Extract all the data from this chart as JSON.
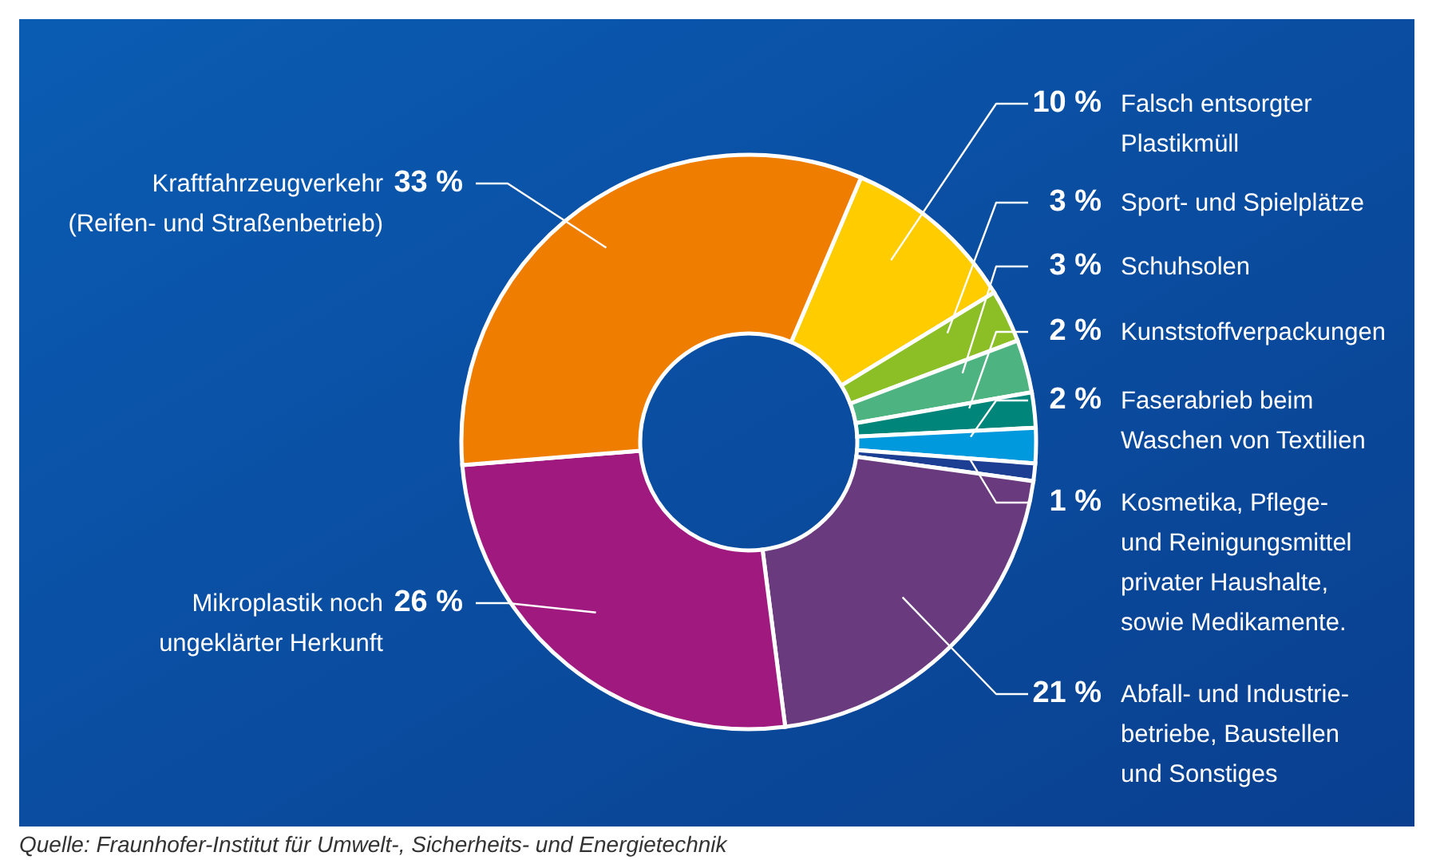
{
  "chart_data": {
    "type": "donut",
    "categories": [
      "Falsch entsorgter\nPlastikmüll",
      "Sport- und Spielplätze",
      "Schuhsolen",
      "Kunststoffverpackungen",
      "Faserabrieb beim\nWaschen von Textilien",
      "Kosmetika, Pflege-\nund Reinigungsmittel\nprivater Haushalte,\nsowie Medikamente.",
      "Abfall- und Industrie-\nbetriebe, Baustellen\nund Sonstiges",
      "Mikroplastik noch\nungeklärter Herkunft",
      "Kraftfahrzeugverkehr\n(Reifen- und Straßenbetrieb)"
    ],
    "values": [
      10,
      3,
      3,
      2,
      2,
      1,
      21,
      26,
      33
    ],
    "value_labels": [
      "10 %",
      "3 %",
      "3 %",
      "2 %",
      "2 %",
      "1 %",
      "21 %",
      "26 %",
      "33 %"
    ],
    "colors": [
      "#ffcc00",
      "#8cbf26",
      "#4db380",
      "#00857a",
      "#0099dd",
      "#1c3f94",
      "#6a3a7f",
      "#a0197f",
      "#ef7d00"
    ],
    "annotations": [
      "Quelle: Fraunhofer-Institut für Umwelt-, Sicherheits- und Energietechnik"
    ]
  }
}
